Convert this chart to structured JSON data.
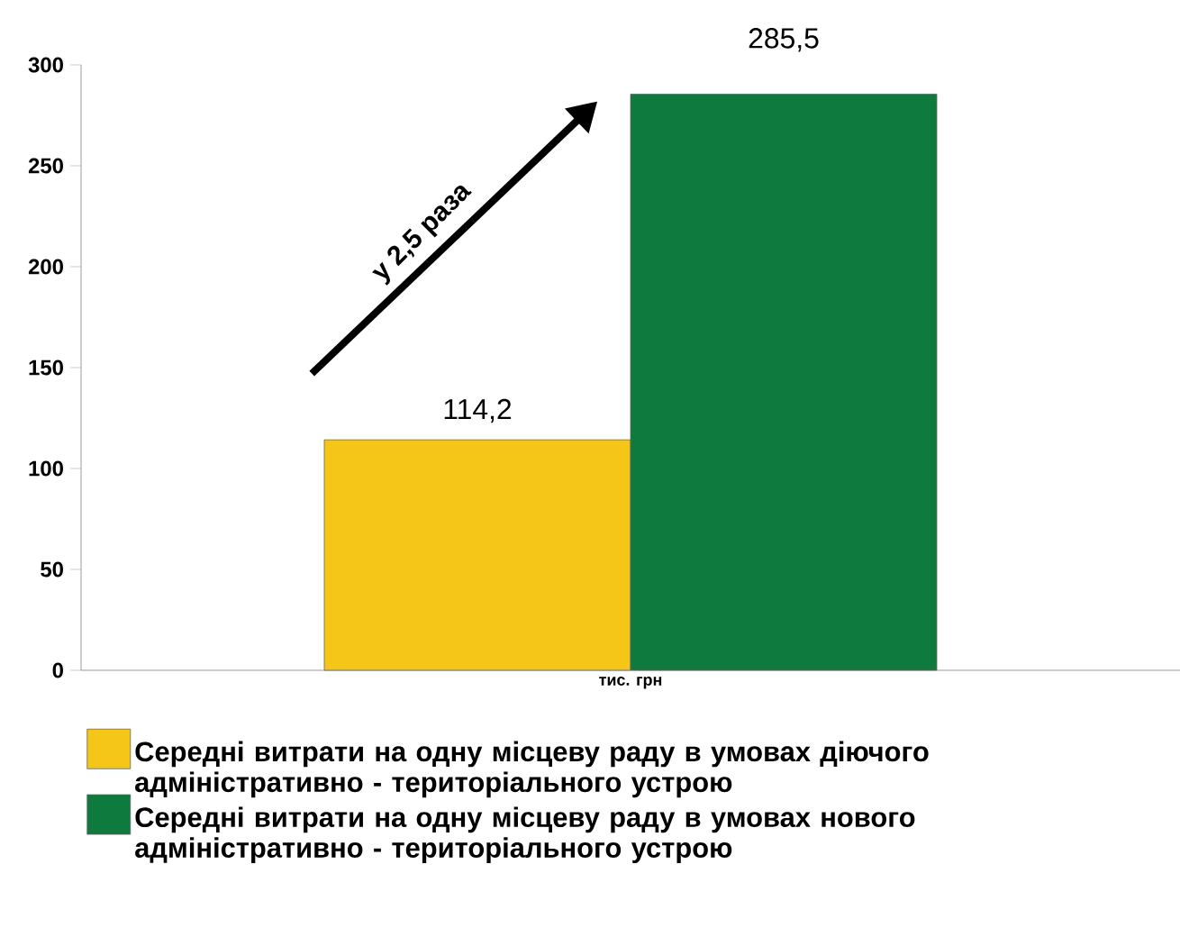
{
  "chart_data": {
    "type": "bar",
    "xlabel": "тис. грн",
    "categories": [
      null
    ],
    "series": [
      {
        "name": "Середні витрати на одну місцеву  раду в умовах діючого адміністративно - територіального устрою",
        "color": "#f5c518",
        "values": [
          114.2
        ],
        "value_labels": [
          "114,2"
        ]
      },
      {
        "name": "Середні витрати на одну місцеву раду в умовах нового адміністративно - територіального устрою",
        "color": "#0e7a3e",
        "values": [
          285.5
        ],
        "value_labels": [
          "285,5"
        ]
      }
    ],
    "ylim": [
      0,
      300
    ],
    "yticks": [
      0,
      50,
      100,
      150,
      200,
      250,
      300
    ],
    "legend": "bottom",
    "annotations": [
      "у 2,5 раза"
    ]
  }
}
